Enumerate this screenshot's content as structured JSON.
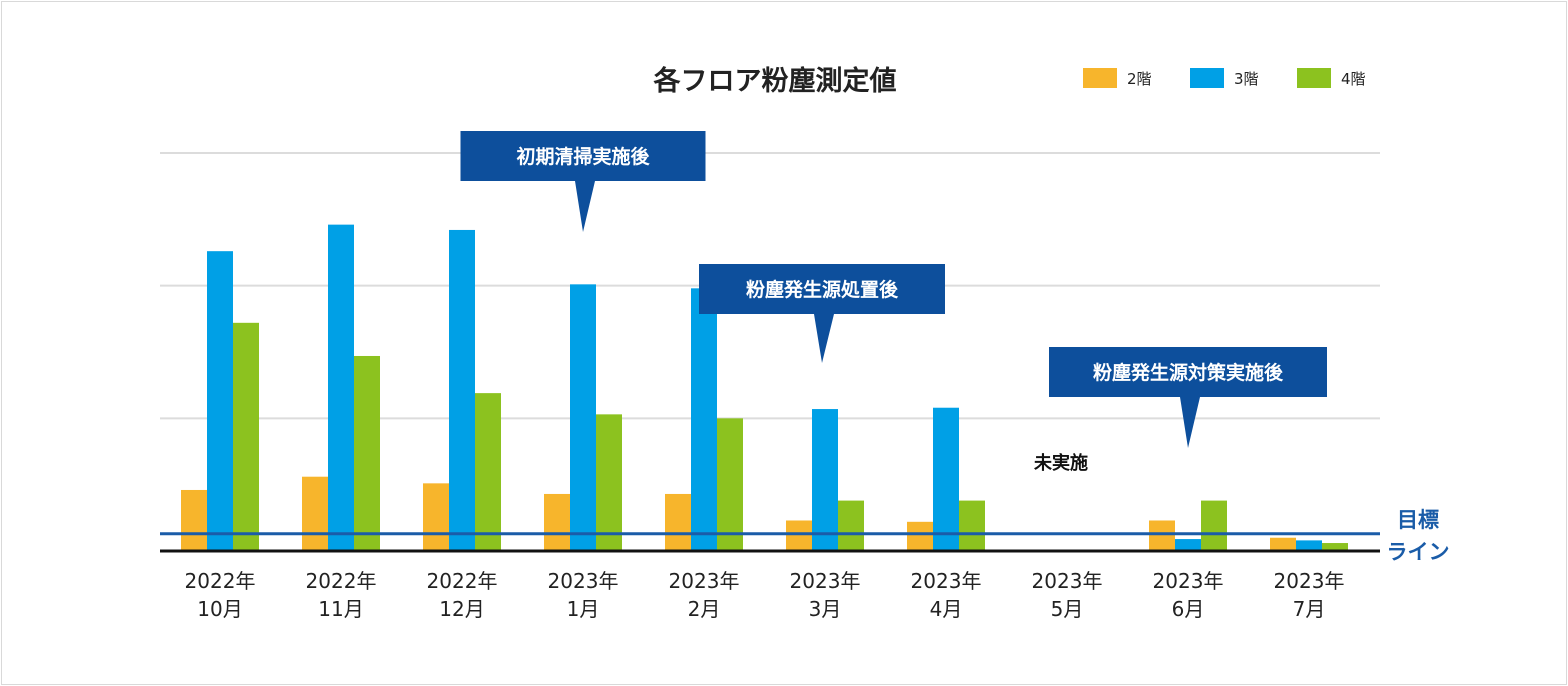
{
  "chart_data": {
    "type": "bar",
    "title": "各フロア粉塵測定値",
    "categories": [
      [
        "2022年",
        "10月"
      ],
      [
        "2022年",
        "11月"
      ],
      [
        "2022年",
        "12月"
      ],
      [
        "2023年",
        "1月"
      ],
      [
        "2023年",
        "2月"
      ],
      [
        "2023年",
        "3月"
      ],
      [
        "2023年",
        "4月"
      ],
      [
        "2023年",
        "5月"
      ],
      [
        "2023年",
        "6月"
      ],
      [
        "2023年",
        "7月"
      ]
    ],
    "series": [
      {
        "name": "2階",
        "color": "#f7b52c",
        "values": [
          0.46,
          0.56,
          0.51,
          0.43,
          0.43,
          0.23,
          0.22,
          null,
          0.23,
          0.1
        ]
      },
      {
        "name": "3階",
        "color": "#00a0e6",
        "values": [
          2.26,
          2.46,
          2.42,
          2.01,
          1.98,
          1.07,
          1.08,
          null,
          0.09,
          0.08
        ]
      },
      {
        "name": "4階",
        "color": "#8cc21f",
        "values": [
          1.72,
          1.47,
          1.19,
          1.03,
          1.0,
          0.38,
          0.38,
          null,
          0.38,
          0.06
        ]
      }
    ],
    "ylim": [
      0,
      3
    ],
    "grid": true,
    "legend": "top-right",
    "xlabel": "",
    "ylabel": "",
    "target_line": {
      "value": 0.13,
      "label_line1": "目標",
      "label_line2": "ライン",
      "color": "#1a5ca8"
    },
    "annotations": [
      {
        "text": "初期清掃実施後",
        "category_index": 3
      },
      {
        "text": "粉塵発生源処置後",
        "category_index": 5
      },
      {
        "text": "粉塵発生源対策実施後",
        "category_index": 8
      }
    ],
    "notes": [
      {
        "text": "未実施",
        "category_index": 7
      }
    ],
    "callout_color": "#0d4f9c"
  }
}
